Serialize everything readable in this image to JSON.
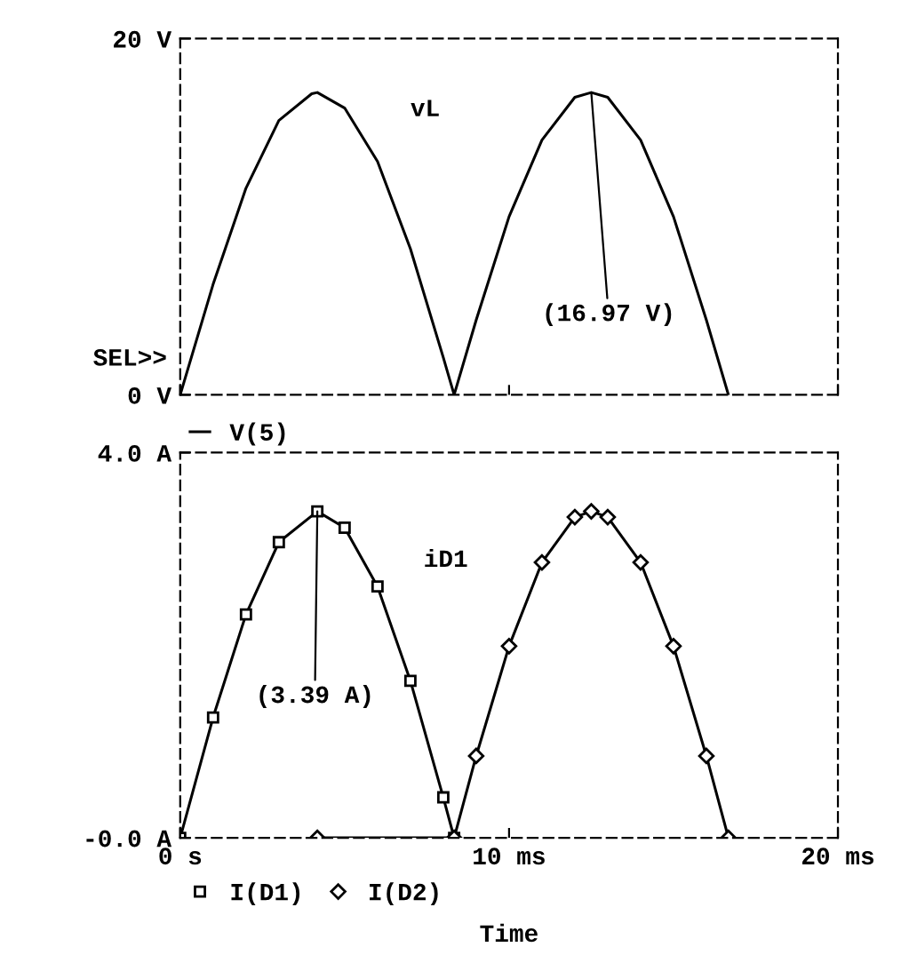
{
  "chart_data": [
    {
      "type": "line",
      "xlim": [
        0,
        20
      ],
      "xticks": [
        0,
        10,
        20
      ],
      "tick_labels": "y",
      "ylim": [
        0,
        20
      ],
      "yticks": [
        {
          "value": 0,
          "label": "0 V"
        },
        {
          "value": 20,
          "label": "20 V"
        }
      ],
      "legend": "bottom left",
      "line_style": "solid",
      "series": [
        {
          "name": "V(5)",
          "color": "#000000",
          "x": [
            0,
            1,
            2,
            3,
            4,
            4.17,
            5,
            6,
            7,
            8,
            8.33,
            9,
            10,
            11,
            12,
            12.5,
            13,
            14,
            15,
            16,
            16.67
          ],
          "values": [
            0,
            6.2,
            11.6,
            15.4,
            16.9,
            16.97,
            16.1,
            13.1,
            8.2,
            2.1,
            0,
            4.2,
            10.0,
            14.3,
            16.7,
            16.97,
            16.7,
            14.3,
            10.0,
            4.2,
            0
          ]
        }
      ],
      "annotations": [
        "vL",
        {
          "text": "(16.97 V)",
          "x": 12.5,
          "y": 16.97
        },
        "SEL>>"
      ]
    },
    {
      "type": "line",
      "xlim": [
        0,
        20
      ],
      "xticks": [
        {
          "value": 0,
          "label": "0 s"
        },
        {
          "value": 10,
          "label": "10 ms"
        },
        {
          "value": 20,
          "label": "20 ms"
        }
      ],
      "ylim": [
        0,
        4
      ],
      "yticks": [
        {
          "value": 0,
          "label": "-0.0 A"
        },
        {
          "value": 4,
          "label": "4.0 A"
        }
      ],
      "xlabel": "Time",
      "legend": "bottom left",
      "line_style": "solid",
      "series": [
        {
          "name": "I(D1)",
          "color": "#000000",
          "marker": "square",
          "x": [
            0,
            1,
            2,
            3,
            4.17,
            5,
            6,
            7,
            8,
            8.33
          ],
          "values": [
            0,
            1.25,
            2.32,
            3.07,
            3.39,
            3.22,
            2.61,
            1.63,
            0.42,
            0
          ]
        },
        {
          "name": "I(D2)",
          "color": "#000000",
          "marker": "diamond",
          "x": [
            4.17,
            8.33,
            9,
            10,
            11,
            12,
            12.5,
            13,
            14,
            15,
            16,
            16.67
          ],
          "values": [
            0,
            0,
            0.85,
            1.99,
            2.86,
            3.33,
            3.39,
            3.33,
            2.86,
            1.99,
            0.85,
            0
          ]
        }
      ],
      "annotations": [
        "iD1",
        {
          "text": "(3.39 A)",
          "x": 4.17,
          "y": 3.39
        }
      ]
    }
  ]
}
